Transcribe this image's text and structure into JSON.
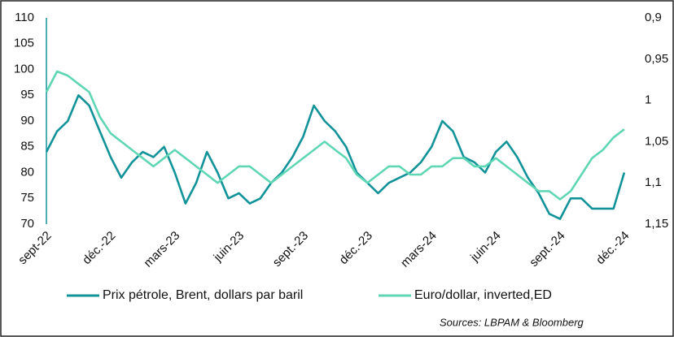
{
  "chart_data": {
    "type": "line",
    "x": [
      0,
      0.5,
      1,
      1.5,
      2,
      2.5,
      3,
      3.5,
      4,
      4.5,
      5,
      5.5,
      6,
      6.5,
      7,
      7.5,
      8,
      8.5,
      9,
      9.5,
      10,
      10.5,
      11,
      11.5,
      12,
      12.5,
      13,
      13.5,
      14,
      14.5,
      15,
      15.5,
      16,
      16.5,
      17,
      17.5,
      18,
      18.5,
      19,
      19.5,
      20,
      20.5,
      21,
      21.5,
      22,
      22.5,
      23,
      23.5,
      24,
      24.5,
      25,
      25.5,
      26,
      26.5,
      27
    ],
    "xlim": [
      0,
      27.5
    ],
    "xticks": [
      {
        "value": 0,
        "label": "sept-22"
      },
      {
        "value": 3,
        "label": "déc.-22"
      },
      {
        "value": 6,
        "label": "mars-23"
      },
      {
        "value": 9,
        "label": "juin-23"
      },
      {
        "value": 12,
        "label": "sept.-23"
      },
      {
        "value": 15,
        "label": "déc.-23"
      },
      {
        "value": 18,
        "label": "mars-24"
      },
      {
        "value": 21,
        "label": "juin-24"
      },
      {
        "value": 24,
        "label": "sept.-24"
      },
      {
        "value": 27,
        "label": "déc.-24"
      }
    ],
    "ylim": [
      70,
      110
    ],
    "yticks": [
      70,
      75,
      80,
      85,
      90,
      95,
      100,
      105,
      110
    ],
    "y2lim": [
      1.15,
      0.9
    ],
    "y2ticks": [
      {
        "value": 0.9,
        "label": "0,9"
      },
      {
        "value": 0.95,
        "label": "0,95"
      },
      {
        "value": 1,
        "label": "1"
      },
      {
        "value": 1.05,
        "label": "1,05"
      },
      {
        "value": 1.1,
        "label": "1,1"
      },
      {
        "value": 1.15,
        "label": "1,15"
      }
    ],
    "series": [
      {
        "name": "Prix pétrole, Brent, dollars par baril",
        "color": "#12939a",
        "values": [
          84,
          88,
          90,
          95,
          93,
          88,
          83,
          79,
          82,
          84,
          83,
          85,
          80,
          74,
          78,
          84,
          80,
          75,
          76,
          74,
          75,
          78,
          80,
          83,
          87,
          93,
          90,
          88,
          85,
          80,
          78,
          76,
          78,
          79,
          80,
          82,
          85,
          90,
          88,
          83,
          82,
          80,
          84,
          86,
          83,
          79,
          76,
          72,
          71,
          75,
          75,
          73,
          73,
          73,
          80
        ]
      },
      {
        "name": "Euro/dollar, inverted,ED",
        "color": "#5fd6b4",
        "axis": "y2",
        "values": [
          0.99,
          0.965,
          0.97,
          0.98,
          0.99,
          1.02,
          1.04,
          1.05,
          1.06,
          1.07,
          1.08,
          1.07,
          1.06,
          1.07,
          1.08,
          1.09,
          1.1,
          1.09,
          1.08,
          1.08,
          1.09,
          1.1,
          1.09,
          1.08,
          1.07,
          1.06,
          1.05,
          1.06,
          1.07,
          1.09,
          1.1,
          1.09,
          1.08,
          1.08,
          1.09,
          1.09,
          1.08,
          1.08,
          1.07,
          1.07,
          1.08,
          1.08,
          1.07,
          1.08,
          1.09,
          1.1,
          1.11,
          1.11,
          1.12,
          1.11,
          1.09,
          1.07,
          1.06,
          1.045,
          1.035
        ]
      }
    ],
    "source": "Sources: LBPAM & Bloomberg"
  }
}
